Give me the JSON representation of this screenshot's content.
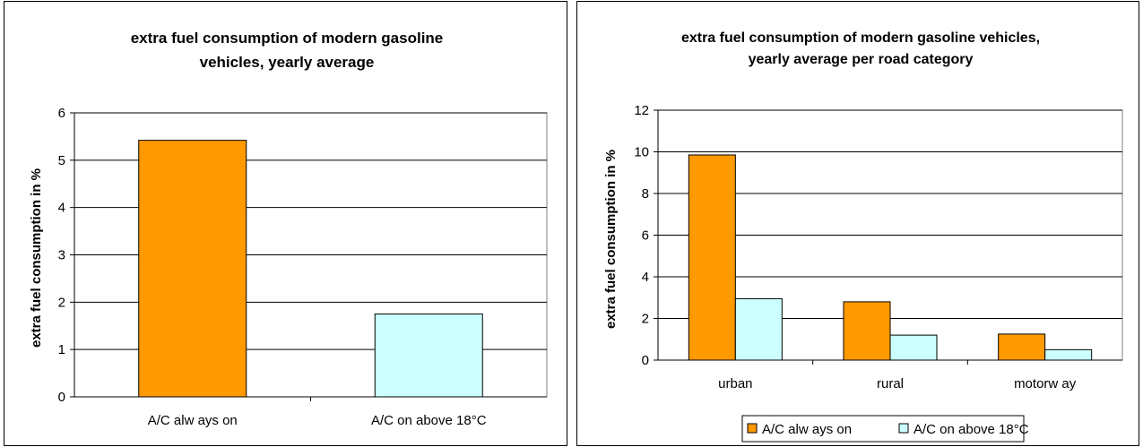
{
  "colors": {
    "series_1": "#FF9900",
    "series_2": "#CCFFFF",
    "grid": "#000000",
    "background": "#FFFFFF"
  },
  "chart_data": [
    {
      "type": "bar",
      "title_lines": [
        "extra fuel consumption of modern gasoline",
        "vehicles, yearly average"
      ],
      "xlabel": "",
      "ylabel": "extra fuel consumption in %",
      "categories": [
        "A/C alw ays on",
        "A/C on above 18°C"
      ],
      "values": [
        5.42,
        1.75
      ],
      "bar_colors": [
        "#FF9900",
        "#CCFFFF"
      ],
      "ylim": [
        0,
        6
      ],
      "yticks": [
        "0",
        "1",
        "2",
        "3",
        "4",
        "5",
        "6"
      ],
      "grid": true,
      "legend": "none"
    },
    {
      "type": "bar",
      "title_lines": [
        "extra fuel consumption of modern gasoline vehicles,",
        "yearly average per road category"
      ],
      "xlabel": "",
      "ylabel": "extra fuel consumption in %",
      "categories": [
        "urban",
        "rural",
        "motorw ay"
      ],
      "series": [
        {
          "name": "A/C alw ays on",
          "values": [
            9.85,
            2.8,
            1.25
          ],
          "color": "#FF9900"
        },
        {
          "name": "A/C on above 18°C",
          "values": [
            2.95,
            1.2,
            0.5
          ],
          "color": "#CCFFFF"
        }
      ],
      "ylim": [
        0,
        12
      ],
      "yticks": [
        "0",
        "2",
        "4",
        "6",
        "8",
        "10",
        "12"
      ],
      "grid": true,
      "legend": "bottom"
    }
  ]
}
